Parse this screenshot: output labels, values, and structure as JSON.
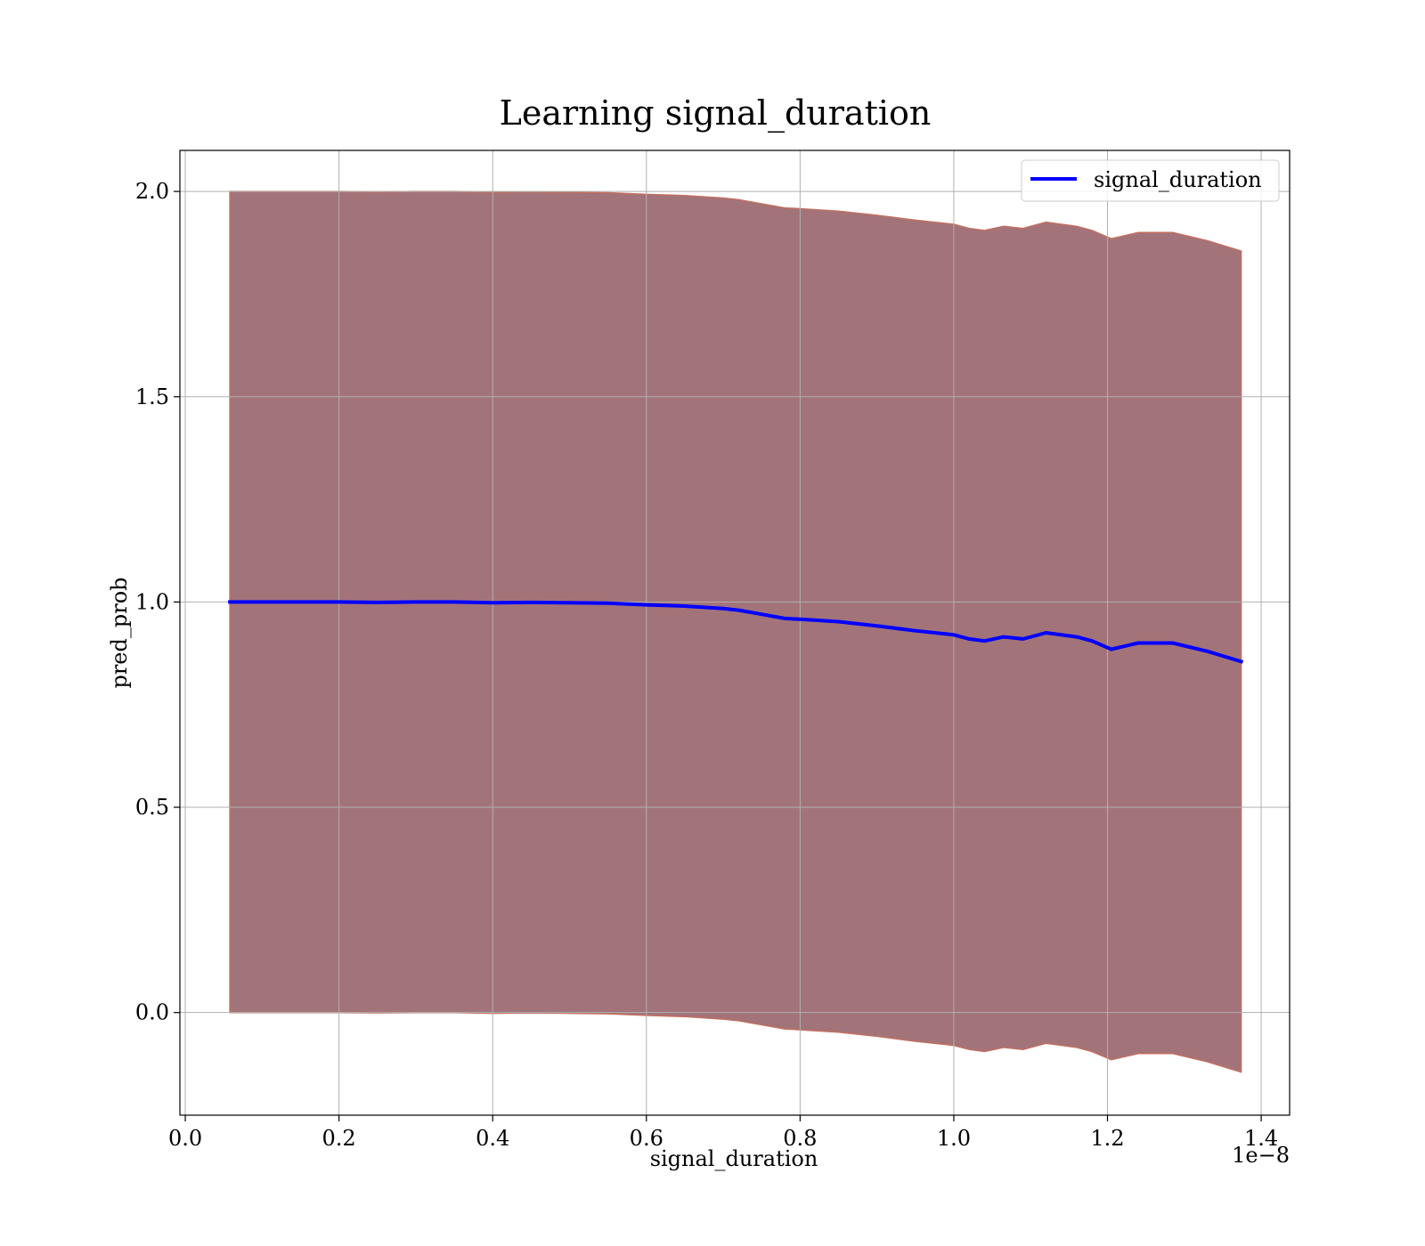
{
  "chart_data": {
    "type": "area",
    "title": "Learning signal_duration",
    "xlabel": "signal_duration",
    "ylabel": "pred_prob",
    "x_offset_label": "1e−8",
    "xlim": [
      -0.007,
      1.437
    ],
    "ylim": [
      -0.25,
      2.1
    ],
    "x_ticks": [
      0.0,
      0.2,
      0.4,
      0.6,
      0.8,
      1.0,
      1.2,
      1.4
    ],
    "x_tick_labels": [
      "0.0",
      "0.2",
      "0.4",
      "0.6",
      "0.8",
      "1.0",
      "1.2",
      "1.4"
    ],
    "y_ticks": [
      0.0,
      0.5,
      1.0,
      1.5,
      2.0
    ],
    "y_tick_labels": [
      "0.0",
      "0.5",
      "1.0",
      "1.5",
      "2.0"
    ],
    "grid": true,
    "legend_position": "top-right",
    "series": [
      {
        "name": "signal_duration",
        "color": "#0000ff",
        "x": [
          0.058,
          0.1,
          0.15,
          0.2,
          0.25,
          0.3,
          0.35,
          0.4,
          0.45,
          0.5,
          0.55,
          0.6,
          0.65,
          0.7,
          0.72,
          0.75,
          0.78,
          0.8,
          0.85,
          0.9,
          0.95,
          1.0,
          1.02,
          1.04,
          1.065,
          1.09,
          1.12,
          1.16,
          1.18,
          1.205,
          1.24,
          1.285,
          1.33,
          1.374
        ],
        "y": [
          1.0,
          1.0,
          1.0,
          1.0,
          0.999,
          1.0,
          1.0,
          0.998,
          0.999,
          0.998,
          0.997,
          0.993,
          0.99,
          0.984,
          0.98,
          0.97,
          0.96,
          0.958,
          0.952,
          0.942,
          0.93,
          0.92,
          0.91,
          0.905,
          0.915,
          0.91,
          0.925,
          0.915,
          0.905,
          0.885,
          0.9,
          0.9,
          0.88,
          0.855
        ]
      }
    ],
    "band": {
      "fill_color": "#a3737a",
      "edge_color": "#c07060",
      "x": [
        0.058,
        0.1,
        0.15,
        0.2,
        0.25,
        0.3,
        0.35,
        0.4,
        0.45,
        0.5,
        0.55,
        0.6,
        0.65,
        0.7,
        0.72,
        0.75,
        0.78,
        0.8,
        0.85,
        0.9,
        0.95,
        1.0,
        1.02,
        1.04,
        1.065,
        1.09,
        1.12,
        1.16,
        1.18,
        1.205,
        1.24,
        1.285,
        1.33,
        1.374
      ],
      "upper": [
        2.0,
        2.0,
        2.0,
        2.0,
        1.999,
        2.0,
        2.0,
        1.998,
        1.999,
        1.998,
        1.997,
        1.993,
        1.99,
        1.984,
        1.98,
        1.97,
        1.96,
        1.958,
        1.952,
        1.942,
        1.93,
        1.92,
        1.91,
        1.905,
        1.915,
        1.91,
        1.925,
        1.915,
        1.905,
        1.885,
        1.9,
        1.9,
        1.88,
        1.855
      ],
      "lower": [
        0.0,
        0.0,
        0.0,
        0.0,
        -0.001,
        0.0,
        0.0,
        -0.002,
        -0.001,
        -0.002,
        -0.003,
        -0.007,
        -0.01,
        -0.016,
        -0.02,
        -0.03,
        -0.04,
        -0.042,
        -0.048,
        -0.058,
        -0.07,
        -0.08,
        -0.09,
        -0.095,
        -0.085,
        -0.09,
        -0.075,
        -0.085,
        -0.095,
        -0.115,
        -0.1,
        -0.1,
        -0.12,
        -0.145
      ]
    }
  }
}
